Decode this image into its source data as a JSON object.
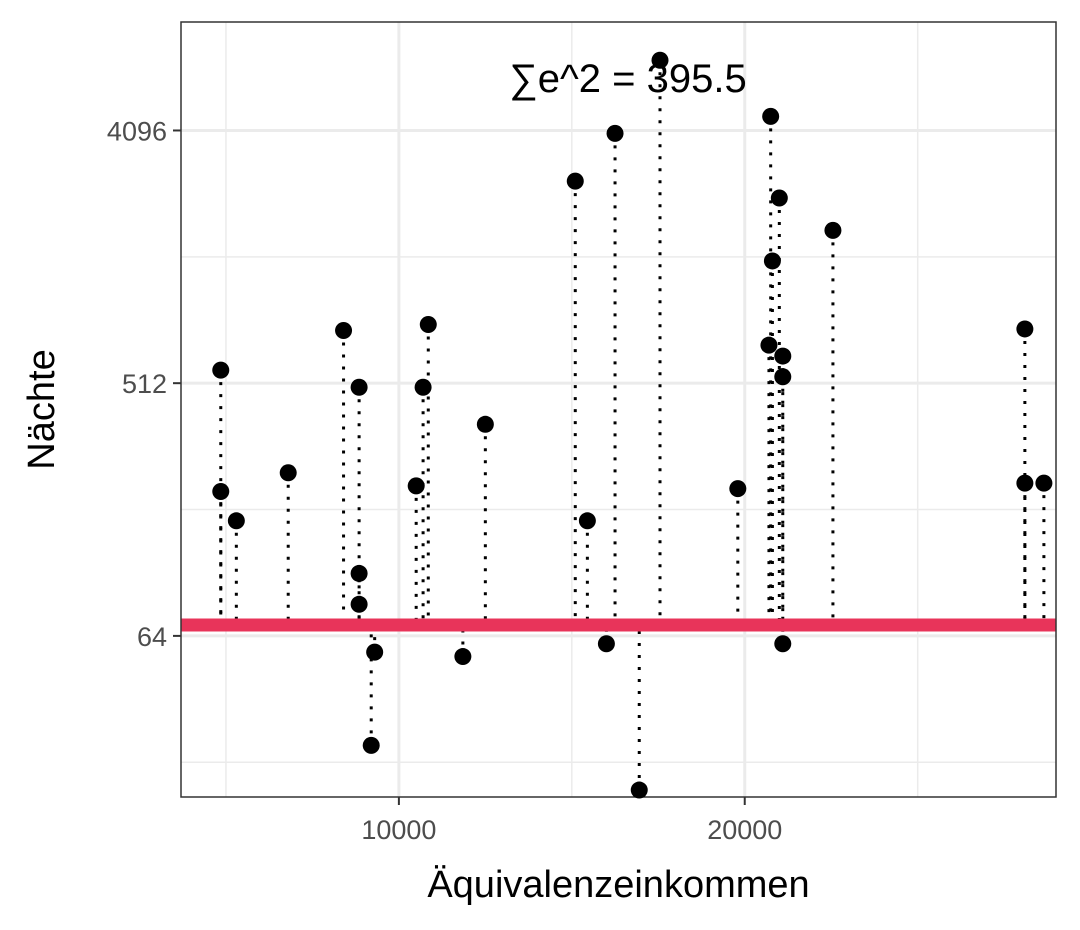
{
  "chart_data": {
    "type": "scatter",
    "title": "",
    "xlabel": "Äquivalenzeinkommen",
    "ylabel": "Nächte",
    "annotation": "∑e^2 = 395.5",
    "y_scale": "log2",
    "xlim": [
      3700,
      29000
    ],
    "ylim": [
      17,
      10000
    ],
    "x_ticks": [
      10000,
      20000
    ],
    "y_ticks": [
      64,
      512,
      4096
    ],
    "grid": true,
    "point_color": "#000000",
    "residual_line_style": "dotted",
    "fitted_line": {
      "y": 70,
      "color": "#e8345a"
    },
    "points": [
      {
        "x": 4850,
        "y": 570
      },
      {
        "x": 4850,
        "y": 210
      },
      {
        "x": 5300,
        "y": 165
      },
      {
        "x": 6800,
        "y": 245
      },
      {
        "x": 8400,
        "y": 790
      },
      {
        "x": 8850,
        "y": 495
      },
      {
        "x": 8850,
        "y": 107
      },
      {
        "x": 8850,
        "y": 83
      },
      {
        "x": 9300,
        "y": 56
      },
      {
        "x": 9200,
        "y": 26
      },
      {
        "x": 10500,
        "y": 220
      },
      {
        "x": 10700,
        "y": 495
      },
      {
        "x": 10850,
        "y": 830
      },
      {
        "x": 11850,
        "y": 54
      },
      {
        "x": 12500,
        "y": 365
      },
      {
        "x": 15100,
        "y": 2700
      },
      {
        "x": 15450,
        "y": 165
      },
      {
        "x": 16000,
        "y": 60
      },
      {
        "x": 16250,
        "y": 4000
      },
      {
        "x": 16950,
        "y": 18
      },
      {
        "x": 17550,
        "y": 7300
      },
      {
        "x": 19800,
        "y": 215
      },
      {
        "x": 20750,
        "y": 4600
      },
      {
        "x": 20800,
        "y": 1400
      },
      {
        "x": 20700,
        "y": 700
      },
      {
        "x": 21000,
        "y": 2350
      },
      {
        "x": 21100,
        "y": 640
      },
      {
        "x": 21100,
        "y": 540
      },
      {
        "x": 21100,
        "y": 60
      },
      {
        "x": 22550,
        "y": 1800
      },
      {
        "x": 28100,
        "y": 800
      },
      {
        "x": 28100,
        "y": 225
      },
      {
        "x": 28650,
        "y": 225
      }
    ]
  }
}
